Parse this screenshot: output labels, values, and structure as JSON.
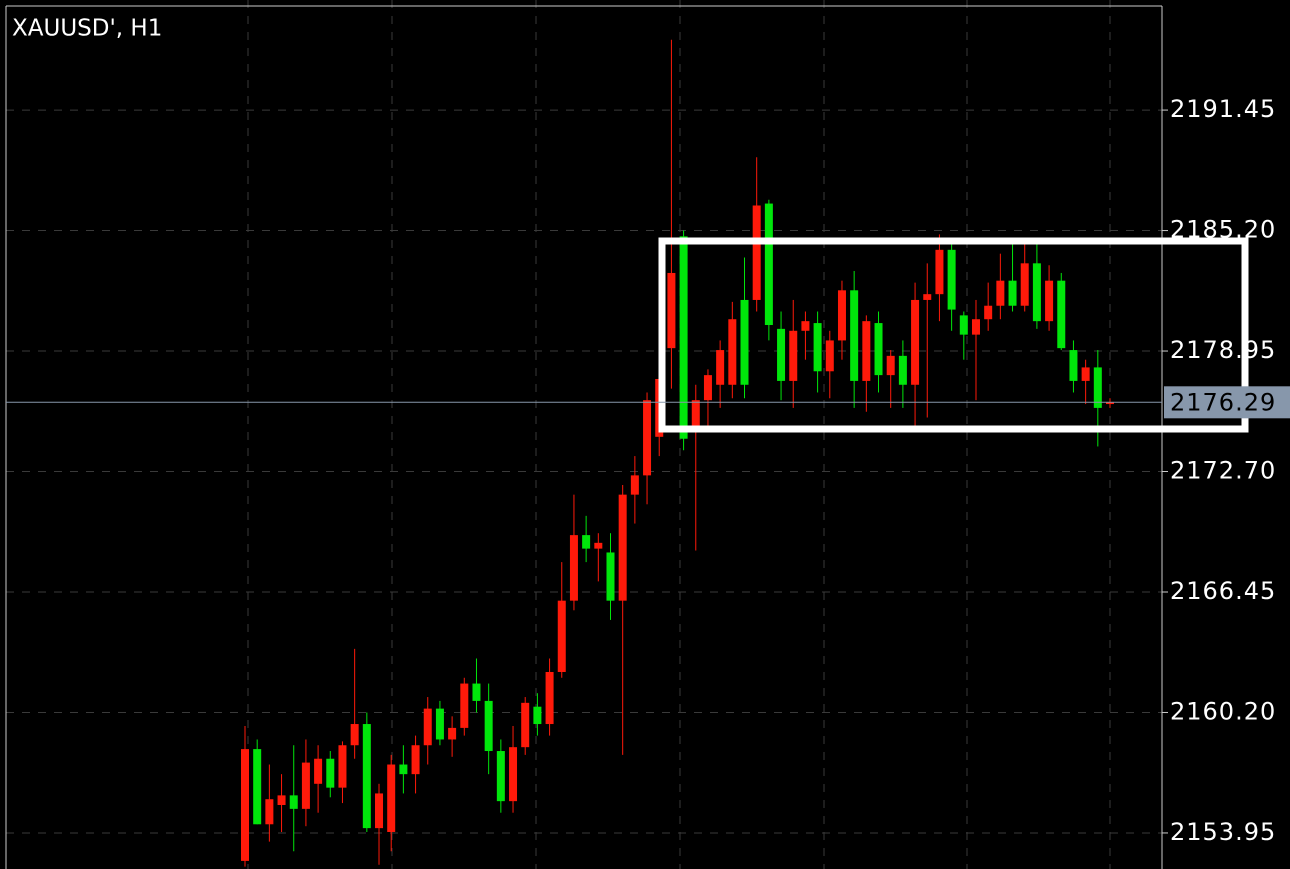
{
  "chart_data": {
    "type": "candlestick",
    "title": "XAUUSD', H1",
    "open": [
      2152.5,
      2158.3,
      2154.4,
      2155.4,
      2155.9,
      2155.2,
      2156.5,
      2157.8,
      2156.3,
      2158.5,
      2159.6,
      2154.2,
      2154.0,
      2157.5,
      2157.0,
      2158.5,
      2160.4,
      2158.8,
      2159.4,
      2161.7,
      2160.8,
      2158.2,
      2155.6,
      2158.4,
      2160.5,
      2159.6,
      2162.3,
      2166.0,
      2169.4,
      2168.7,
      2168.5,
      2166.0,
      2171.5,
      2172.5,
      2174.5,
      2179.1,
      2184.9,
      2174.9,
      2176.4,
      2177.2,
      2177.2,
      2181.6,
      2181.6,
      2186.6,
      2180.1,
      2177.4,
      2180.0,
      2180.4,
      2177.9,
      2179.5,
      2182.1,
      2177.4,
      2180.4,
      2177.7,
      2178.7,
      2177.2,
      2181.6,
      2181.9,
      2184.2,
      2180.8,
      2179.8,
      2180.6,
      2181.3,
      2182.6,
      2181.3,
      2183.5,
      2180.5,
      2182.6,
      2179.0,
      2177.4,
      2178.1,
      2176.2
    ],
    "high": [
      2159.5,
      2158.8,
      2157.5,
      2157.0,
      2158.5,
      2158.8,
      2158.5,
      2158.2,
      2158.7,
      2163.5,
      2160.2,
      2156.5,
      2158.0,
      2158.5,
      2159.0,
      2161.0,
      2160.8,
      2160.0,
      2162.0,
      2163.0,
      2161.7,
      2158.8,
      2159.5,
      2161.0,
      2161.2,
      2163.0,
      2168.0,
      2171.5,
      2170.4,
      2169.5,
      2169.5,
      2172.0,
      2173.5,
      2176.8,
      2178.5,
      2195.1,
      2185.2,
      2177.2,
      2178.0,
      2179.5,
      2181.5,
      2183.8,
      2189.0,
      2186.8,
      2181.0,
      2181.6,
      2181.0,
      2181.0,
      2180.0,
      2182.6,
      2183.1,
      2180.8,
      2181.0,
      2179.0,
      2179.5,
      2182.5,
      2183.5,
      2185.0,
      2184.5,
      2181.0,
      2181.6,
      2182.5,
      2184.0,
      2184.5,
      2184.6,
      2184.5,
      2183.4,
      2183.0,
      2179.5,
      2178.5,
      2179.0,
      2176.5
    ],
    "low": [
      2152.2,
      2154.4,
      2153.5,
      2154.0,
      2153.0,
      2154.3,
      2155.0,
      2155.8,
      2155.5,
      2157.8,
      2154.0,
      2152.3,
      2153.0,
      2156.0,
      2156.0,
      2157.5,
      2158.5,
      2157.9,
      2159.0,
      2160.2,
      2157.0,
      2155.0,
      2155.0,
      2158.0,
      2159.0,
      2159.0,
      2162.0,
      2165.5,
      2168.0,
      2167.0,
      2165.0,
      2158.0,
      2170.0,
      2171.0,
      2173.5,
      2177.0,
      2173.8,
      2168.6,
      2175.0,
      2176.0,
      2176.5,
      2176.5,
      2181.0,
      2179.5,
      2176.4,
      2176.0,
      2178.5,
      2176.8,
      2176.5,
      2178.5,
      2176.0,
      2175.8,
      2176.8,
      2176.0,
      2176.0,
      2175.0,
      2175.5,
      2180.5,
      2180.0,
      2178.5,
      2176.4,
      2180.0,
      2180.6,
      2181.0,
      2181.0,
      2180.1,
      2180.0,
      2179.0,
      2176.8,
      2176.2,
      2174.0,
      2176.0
    ],
    "close": [
      2158.3,
      2154.4,
      2155.7,
      2155.9,
      2155.2,
      2157.6,
      2157.8,
      2156.3,
      2158.5,
      2159.6,
      2154.2,
      2156.0,
      2157.5,
      2157.0,
      2158.5,
      2160.4,
      2158.8,
      2159.4,
      2161.7,
      2160.8,
      2158.2,
      2155.6,
      2158.4,
      2160.7,
      2159.6,
      2162.3,
      2166.0,
      2169.4,
      2168.7,
      2169.0,
      2166.0,
      2171.5,
      2172.5,
      2176.4,
      2177.5,
      2183.0,
      2174.4,
      2176.4,
      2177.7,
      2179.0,
      2180.6,
      2177.2,
      2186.5,
      2180.3,
      2177.4,
      2180.0,
      2180.5,
      2177.9,
      2179.5,
      2182.1,
      2177.4,
      2180.5,
      2177.7,
      2178.7,
      2177.2,
      2181.6,
      2181.9,
      2184.2,
      2181.1,
      2179.8,
      2180.6,
      2181.3,
      2182.6,
      2181.3,
      2183.5,
      2180.5,
      2182.6,
      2179.1,
      2177.4,
      2178.1,
      2176.0,
      2176.29
    ],
    "up_color": "#ff1a0a",
    "down_color": "#00e60b",
    "ylim": [
      2152.08,
      2197.16
    ],
    "yticks": [
      2153.95,
      {
        "value": 2160.2,
        "label": "2160.20"
      },
      2166.45,
      {
        "value": 2172.7,
        "label": "2172.70"
      },
      2178.95,
      {
        "value": 2185.2,
        "label": "2185.20"
      },
      2191.45
    ],
    "grid": true,
    "current_price": 2176.29
  }
}
